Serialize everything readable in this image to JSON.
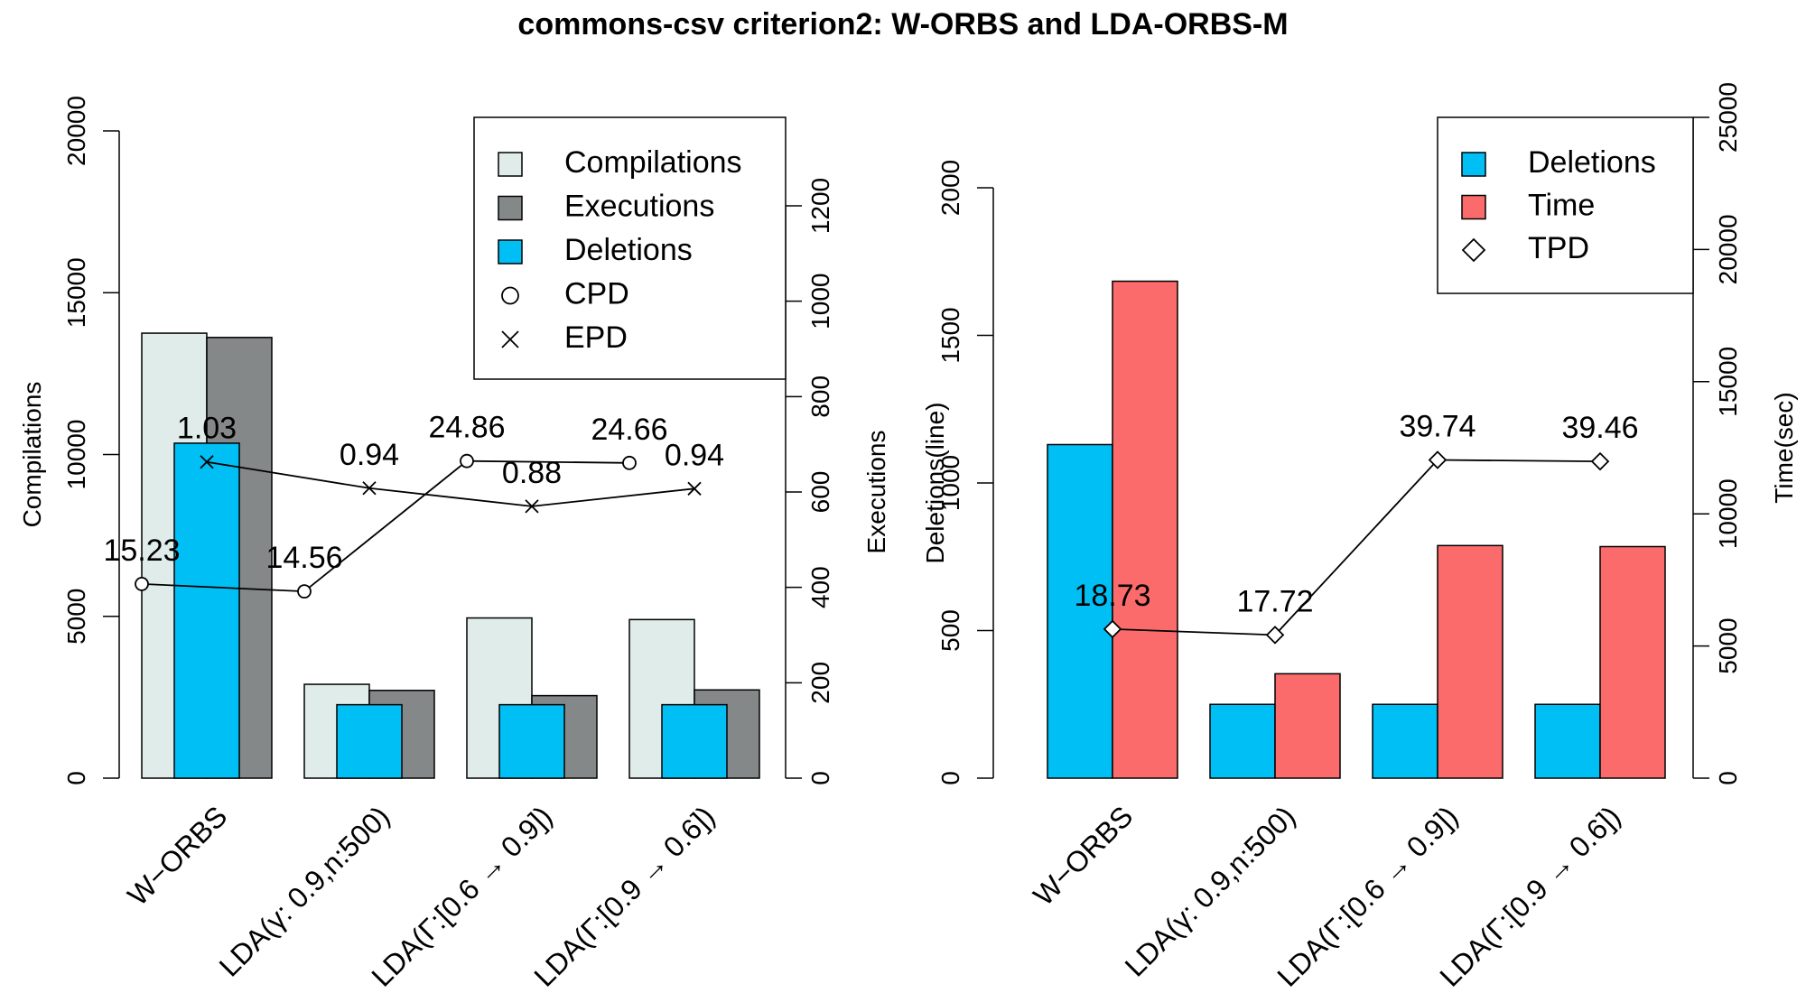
{
  "title": "commons-csv criterion2: W-ORBS and LDA-ORBS-M",
  "colors": {
    "compilations": "#e0ecea",
    "executions": "#848888",
    "deletions": "#00bff5",
    "time": "#fc6b6b",
    "line": "#000000"
  },
  "chart_data": [
    {
      "type": "bar",
      "categories": [
        "W−ORBS",
        "LDA(γ: 0.9,n:500)",
        "LDA(Γ:[0.6 → 0.9])",
        "LDA(Γ:[0.9 → 0.6])"
      ],
      "left_axis": {
        "label": "Compilations",
        "ylim": [
          0,
          20000
        ],
        "ticks": [
          "0",
          "5000",
          "10000",
          "15000",
          "20000"
        ]
      },
      "right_axis": {
        "label": "Executions",
        "ylim": [
          0,
          1200
        ],
        "ticks": [
          "0",
          "200",
          "400",
          "600",
          "800",
          "1000",
          "1200"
        ]
      },
      "series": [
        {
          "name": "Compilations",
          "axis": "left",
          "values": [
            13750,
            2900,
            4950,
            4900
          ]
        },
        {
          "name": "Executions",
          "axis": "right",
          "values": [
            924,
            184,
            173,
            185
          ]
        },
        {
          "name": "Deletions",
          "axis": "left",
          "values": [
            10350,
            2270,
            2270,
            2270
          ]
        }
      ],
      "lines": [
        {
          "name": "CPD",
          "marker": "circle",
          "axis": "left",
          "values": [
            6000,
            5770,
            9800,
            9740
          ],
          "labels": [
            "15.23",
            "14.56",
            "24.86",
            "24.66"
          ]
        },
        {
          "name": "EPD",
          "marker": "cross",
          "axis": "right",
          "values": [
            663,
            608,
            570,
            607
          ],
          "labels": [
            "1.03",
            "0.94",
            "0.88",
            "0.94"
          ]
        }
      ],
      "legend": [
        "Compilations",
        "Executions",
        "Deletions",
        "CPD",
        "EPD"
      ],
      "legend_position": "top-right"
    },
    {
      "type": "bar",
      "categories": [
        "W−ORBS",
        "LDA(γ: 0.9,n:500)",
        "LDA(Γ:[0.6 → 0.9])",
        "LDA(Γ:[0.9 → 0.6])"
      ],
      "left_axis": {
        "label": "Deletions(line)",
        "ylim": [
          0,
          2000
        ],
        "ticks": [
          "0",
          "500",
          "1000",
          "1500",
          "2000"
        ]
      },
      "right_axis": {
        "label": "Time(sec)",
        "ylim": [
          0,
          25000
        ],
        "ticks": [
          "0",
          "5000",
          "10000",
          "15000",
          "20000",
          "25000"
        ]
      },
      "series": [
        {
          "name": "Deletions",
          "axis": "left",
          "values": [
            1130,
            250,
            250,
            250
          ]
        },
        {
          "name": "Time",
          "axis": "right",
          "values": [
            18800,
            3950,
            8800,
            8760
          ]
        }
      ],
      "lines": [
        {
          "name": "TPD",
          "marker": "diamond",
          "axis": "left",
          "values": [
            505,
            485,
            1078,
            1073
          ],
          "labels": [
            "18.73",
            "17.72",
            "39.74",
            "39.46"
          ]
        }
      ],
      "legend": [
        "Deletions",
        "Time",
        "TPD"
      ],
      "legend_position": "top-right"
    }
  ]
}
